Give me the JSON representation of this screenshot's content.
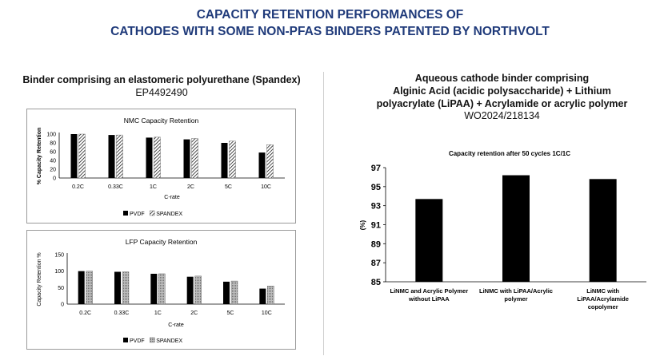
{
  "header": {
    "title_line1": "CAPACITY RETENTION PERFORMANCES OF",
    "title_line2": "CATHODES WITH SOME NON-PFAS BINDERS PATENTED BY NORTHVOLT"
  },
  "left": {
    "heading": "Binder comprising an elastomeric polyurethane (Spandex)",
    "patent_id": "EP4492490"
  },
  "right": {
    "heading_line1": "Aqueous cathode binder comprising",
    "heading_line2": "Alginic Acid (acidic polysaccharide) + Lithium",
    "heading_line3": "polyacrylate (LiPAA) + Acrylamide or acrylic polymer",
    "patent_id": "WO2024/218134"
  },
  "chart_data": [
    {
      "type": "bar",
      "title": "NMC Capacity Retention",
      "xlabel": "C-rate",
      "ylabel": "% Capacity Retention",
      "categories": [
        "0.2C",
        "0.33C",
        "1C",
        "2C",
        "5C",
        "10C"
      ],
      "ylim": [
        0,
        100
      ],
      "yticks": [
        0,
        20,
        40,
        60,
        80,
        100
      ],
      "series": [
        {
          "name": "PVDF",
          "values": [
            100,
            98,
            92,
            88,
            80,
            58
          ],
          "color": "#000000"
        },
        {
          "name": "SPANDEX",
          "values": [
            100,
            98,
            93,
            90,
            84,
            76
          ],
          "pattern": "diagonal-hatch"
        }
      ],
      "legend": "bottom"
    },
    {
      "type": "bar",
      "title": "LFP Capacity Retention",
      "xlabel": "C-rate",
      "ylabel": "Capacity Retention %",
      "categories": [
        "0.2C",
        "0.33C",
        "1C",
        "2C",
        "5C",
        "10C"
      ],
      "ylim": [
        0,
        150
      ],
      "yticks": [
        0,
        50,
        100,
        150
      ],
      "series": [
        {
          "name": "PVDF",
          "values": [
            100,
            98,
            92,
            83,
            68,
            47
          ],
          "color": "#000000"
        },
        {
          "name": "SPANDEX",
          "values": [
            100,
            98,
            92,
            85,
            70,
            55
          ],
          "pattern": "dotted"
        }
      ],
      "legend": "bottom"
    },
    {
      "type": "bar",
      "title": "Capacity retention after 50 cycles 1C/1C",
      "xlabel": "",
      "ylabel": "(%)",
      "categories": [
        "LiNMC and Acrylic Polymer without LiPAA",
        "LiNMC with LiPAA/Acrylic polymer",
        "LiNMC with LiPAA/Acrylamide copolymer"
      ],
      "category_lines": [
        [
          "LiNMC and Acrylic Polymer",
          "without LiPAA"
        ],
        [
          "LiNMC with LiPAA/Acrylic",
          "polymer"
        ],
        [
          "LiNMC with",
          "LiPAA/Acrylamide",
          "copolymer"
        ]
      ],
      "ylim": [
        85,
        97
      ],
      "yticks": [
        85,
        87,
        89,
        91,
        93,
        95,
        97
      ],
      "series": [
        {
          "name": "",
          "values": [
            93.7,
            96.2,
            95.8
          ],
          "color": "#000000"
        }
      ],
      "legend": "none"
    }
  ]
}
